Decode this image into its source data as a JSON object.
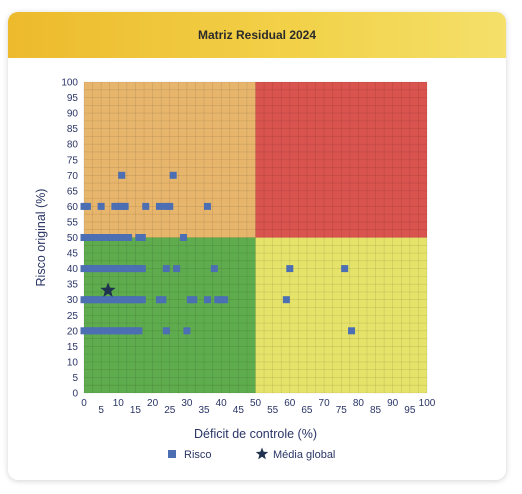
{
  "card": {
    "title": "Matriz Residual 2024"
  },
  "chart_data": {
    "type": "scatter",
    "title": "Matriz Residual 2024",
    "xlabel": "Déficit de controle (%)",
    "ylabel": "Risco original (%)",
    "xlim": [
      0,
      100
    ],
    "ylim": [
      0,
      100
    ],
    "x_ticks_row1": [
      "0",
      "10",
      "20",
      "30",
      "40",
      "50",
      "60",
      "70",
      "80",
      "90",
      "100"
    ],
    "x_ticks_row2": [
      "5",
      "15",
      "25",
      "35",
      "45",
      "55",
      "65",
      "75",
      "85",
      "95"
    ],
    "y_ticks": [
      "0",
      "5",
      "10",
      "15",
      "20",
      "25",
      "30",
      "35",
      "40",
      "45",
      "50",
      "55",
      "60",
      "65",
      "70",
      "75",
      "80",
      "85",
      "90",
      "95",
      "100"
    ],
    "grid": true,
    "zones": [
      {
        "x": [
          0,
          50
        ],
        "y": [
          50,
          100
        ],
        "color": "#e7b66c"
      },
      {
        "x": [
          50,
          100
        ],
        "y": [
          50,
          100
        ],
        "color": "#d9534f"
      },
      {
        "x": [
          0,
          50
        ],
        "y": [
          0,
          50
        ],
        "color": "#5fac4e"
      },
      {
        "x": [
          50,
          100
        ],
        "y": [
          0,
          50
        ],
        "color": "#e6e36a"
      }
    ],
    "series": [
      {
        "name": "Risco",
        "marker": "square",
        "color": "#4c6eb3",
        "points": [
          [
            11,
            70
          ],
          [
            26,
            70
          ],
          [
            0,
            60
          ],
          [
            1,
            60
          ],
          [
            5,
            60
          ],
          [
            9,
            60
          ],
          [
            10,
            60
          ],
          [
            11,
            60
          ],
          [
            12,
            60
          ],
          [
            18,
            60
          ],
          [
            22,
            60
          ],
          [
            24,
            60
          ],
          [
            25,
            60
          ],
          [
            36,
            60
          ],
          [
            0,
            50
          ],
          [
            1,
            50
          ],
          [
            2,
            50
          ],
          [
            3,
            50
          ],
          [
            4,
            50
          ],
          [
            5,
            50
          ],
          [
            6,
            50
          ],
          [
            7,
            50
          ],
          [
            8,
            50
          ],
          [
            9,
            50
          ],
          [
            10,
            50
          ],
          [
            11,
            50
          ],
          [
            12,
            50
          ],
          [
            13,
            50
          ],
          [
            16,
            50
          ],
          [
            17,
            50
          ],
          [
            29,
            50
          ],
          [
            0,
            40
          ],
          [
            1,
            40
          ],
          [
            2,
            40
          ],
          [
            3,
            40
          ],
          [
            4,
            40
          ],
          [
            5,
            40
          ],
          [
            6,
            40
          ],
          [
            7,
            40
          ],
          [
            8,
            40
          ],
          [
            9,
            40
          ],
          [
            10,
            40
          ],
          [
            11,
            40
          ],
          [
            12,
            40
          ],
          [
            13,
            40
          ],
          [
            14,
            40
          ],
          [
            15,
            40
          ],
          [
            16,
            40
          ],
          [
            17,
            40
          ],
          [
            24,
            40
          ],
          [
            27,
            40
          ],
          [
            38,
            40
          ],
          [
            60,
            40
          ],
          [
            76,
            40
          ],
          [
            0,
            30
          ],
          [
            1,
            30
          ],
          [
            2,
            30
          ],
          [
            3,
            30
          ],
          [
            4,
            30
          ],
          [
            5,
            30
          ],
          [
            6,
            30
          ],
          [
            7,
            30
          ],
          [
            8,
            30
          ],
          [
            9,
            30
          ],
          [
            10,
            30
          ],
          [
            11,
            30
          ],
          [
            12,
            30
          ],
          [
            13,
            30
          ],
          [
            14,
            30
          ],
          [
            15,
            30
          ],
          [
            16,
            30
          ],
          [
            17,
            30
          ],
          [
            22,
            30
          ],
          [
            23,
            30
          ],
          [
            31,
            30
          ],
          [
            32,
            30
          ],
          [
            36,
            30
          ],
          [
            39,
            30
          ],
          [
            40,
            30
          ],
          [
            41,
            30
          ],
          [
            59,
            30
          ],
          [
            0,
            20
          ],
          [
            1,
            20
          ],
          [
            2,
            20
          ],
          [
            3,
            20
          ],
          [
            4,
            20
          ],
          [
            5,
            20
          ],
          [
            6,
            20
          ],
          [
            7,
            20
          ],
          [
            8,
            20
          ],
          [
            9,
            20
          ],
          [
            10,
            20
          ],
          [
            11,
            20
          ],
          [
            12,
            20
          ],
          [
            13,
            20
          ],
          [
            14,
            20
          ],
          [
            15,
            20
          ],
          [
            16,
            20
          ],
          [
            24,
            20
          ],
          [
            30,
            20
          ],
          [
            78,
            20
          ]
        ]
      },
      {
        "name": "Média global",
        "marker": "star",
        "color": "#1f3350",
        "points": [
          [
            7,
            33
          ]
        ]
      }
    ],
    "legend": {
      "position": "bottom-center",
      "items": [
        "Risco",
        "Média global"
      ]
    }
  }
}
